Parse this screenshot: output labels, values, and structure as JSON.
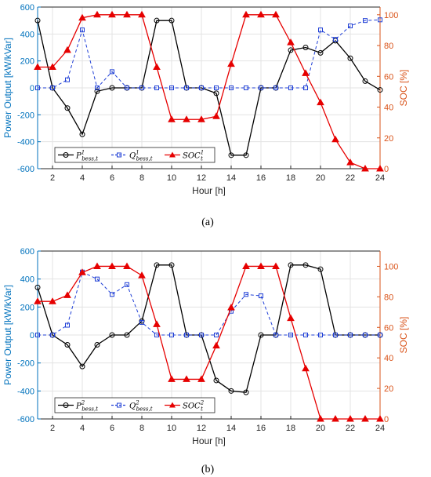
{
  "colors": {
    "p": "#000000",
    "q": "#1f3fd6",
    "soc": "#e60000",
    "left_axis": "#0072bd",
    "right_axis": "#d95319",
    "grid": "#e3e3e3"
  },
  "chart_data": [
    {
      "type": "line",
      "caption": "(a)",
      "xlabel": "Hour [h]",
      "ylabel_left": "Power Output [kW/kVar]",
      "ylabel_right": "SOC [%]",
      "xlim": [
        1,
        24
      ],
      "ylim_left": [
        -600,
        600
      ],
      "ylim_right": [
        0,
        105
      ],
      "xticks": [
        2,
        4,
        6,
        8,
        10,
        12,
        14,
        16,
        18,
        20,
        22,
        24
      ],
      "yticks_left": [
        -600,
        -400,
        -200,
        0,
        200,
        400,
        600
      ],
      "yticks_right": [
        0,
        20,
        40,
        60,
        80,
        100
      ],
      "grid": true,
      "legend": {
        "position": "bottom-left",
        "entries": [
          {
            "base": "P",
            "sup": "1",
            "sub": "bess,t"
          },
          {
            "base": "Q",
            "sup": "1",
            "sub": "bess,t"
          },
          {
            "base": "SOC",
            "sup": "1",
            "sub": "t"
          }
        ]
      },
      "x": [
        1,
        2,
        3,
        4,
        5,
        6,
        7,
        8,
        9,
        10,
        11,
        12,
        13,
        14,
        15,
        16,
        17,
        18,
        19,
        20,
        21,
        22,
        23,
        24
      ],
      "series": [
        {
          "axis": "left",
          "style": "solid",
          "marker": "circle",
          "colorKey": "p",
          "values": [
            500,
            0,
            -150,
            -345,
            -25,
            0,
            0,
            0,
            500,
            500,
            0,
            0,
            -40,
            -500,
            -500,
            0,
            0,
            280,
            300,
            260,
            350,
            220,
            50,
            -15
          ]
        },
        {
          "axis": "left",
          "style": "dashed",
          "marker": "square",
          "colorKey": "q",
          "values": [
            0,
            0,
            60,
            430,
            0,
            120,
            0,
            0,
            0,
            0,
            0,
            0,
            0,
            0,
            0,
            0,
            0,
            0,
            0,
            430,
            360,
            460,
            500,
            505
          ]
        },
        {
          "axis": "right",
          "style": "solid",
          "marker": "triangle",
          "colorKey": "soc",
          "values": [
            66,
            66,
            77,
            98,
            100,
            100,
            100,
            100,
            66,
            32,
            32,
            32,
            34,
            68,
            100,
            100,
            100,
            82,
            62,
            43,
            19,
            4,
            0,
            0
          ]
        }
      ]
    },
    {
      "type": "line",
      "caption": "(b)",
      "xlabel": "Hour [h]",
      "ylabel_left": "Power Output [kW/kVar]",
      "ylabel_right": "SOC [%]",
      "xlim": [
        1,
        24
      ],
      "ylim_left": [
        -600,
        600
      ],
      "ylim_right": [
        0,
        110
      ],
      "xticks": [
        2,
        4,
        6,
        8,
        10,
        12,
        14,
        16,
        18,
        20,
        22,
        24
      ],
      "yticks_left": [
        -600,
        -400,
        -200,
        0,
        200,
        400,
        600
      ],
      "yticks_right": [
        0,
        20,
        40,
        60,
        80,
        100
      ],
      "grid": true,
      "legend": {
        "position": "bottom-left",
        "entries": [
          {
            "base": "P",
            "sup": "2",
            "sub": "bess,t"
          },
          {
            "base": "Q",
            "sup": "2",
            "sub": "bess,t"
          },
          {
            "base": "SOC",
            "sup": "2",
            "sub": "t"
          }
        ]
      },
      "x": [
        1,
        2,
        3,
        4,
        5,
        6,
        7,
        8,
        9,
        10,
        11,
        12,
        13,
        14,
        15,
        16,
        17,
        18,
        19,
        20,
        21,
        22,
        23,
        24
      ],
      "series": [
        {
          "axis": "left",
          "style": "solid",
          "marker": "circle",
          "colorKey": "p",
          "values": [
            340,
            0,
            -70,
            -225,
            -70,
            0,
            0,
            100,
            500,
            500,
            0,
            0,
            -325,
            -400,
            -410,
            0,
            0,
            500,
            500,
            470,
            0,
            0,
            0,
            0
          ]
        },
        {
          "axis": "left",
          "style": "dashed",
          "marker": "square",
          "colorKey": "q",
          "values": [
            0,
            0,
            70,
            450,
            400,
            290,
            360,
            90,
            0,
            0,
            0,
            0,
            0,
            170,
            290,
            280,
            0,
            0,
            0,
            0,
            0,
            0,
            0,
            0
          ]
        },
        {
          "axis": "right",
          "style": "solid",
          "marker": "triangle",
          "colorKey": "soc",
          "values": [
            77,
            77,
            81,
            96,
            100,
            100,
            100,
            94,
            62,
            26,
            26,
            26,
            48,
            73,
            100,
            100,
            100,
            66,
            33,
            0,
            0,
            0,
            0,
            0
          ]
        }
      ]
    }
  ]
}
